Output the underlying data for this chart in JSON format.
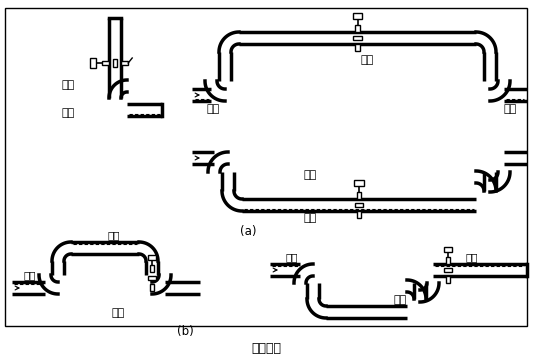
{
  "bg": "#ffffff",
  "lw": 2.5,
  "g": 6,
  "cr": 12,
  "fs": 7.5,
  "border": [
    5,
    8,
    522,
    318
  ],
  "title": "图（四）",
  "label_a": "(a)",
  "label_b": "(b)",
  "zhengque": "正确",
  "cuowu": "错误",
  "yeti": "液体",
  "qipao": "气泡"
}
